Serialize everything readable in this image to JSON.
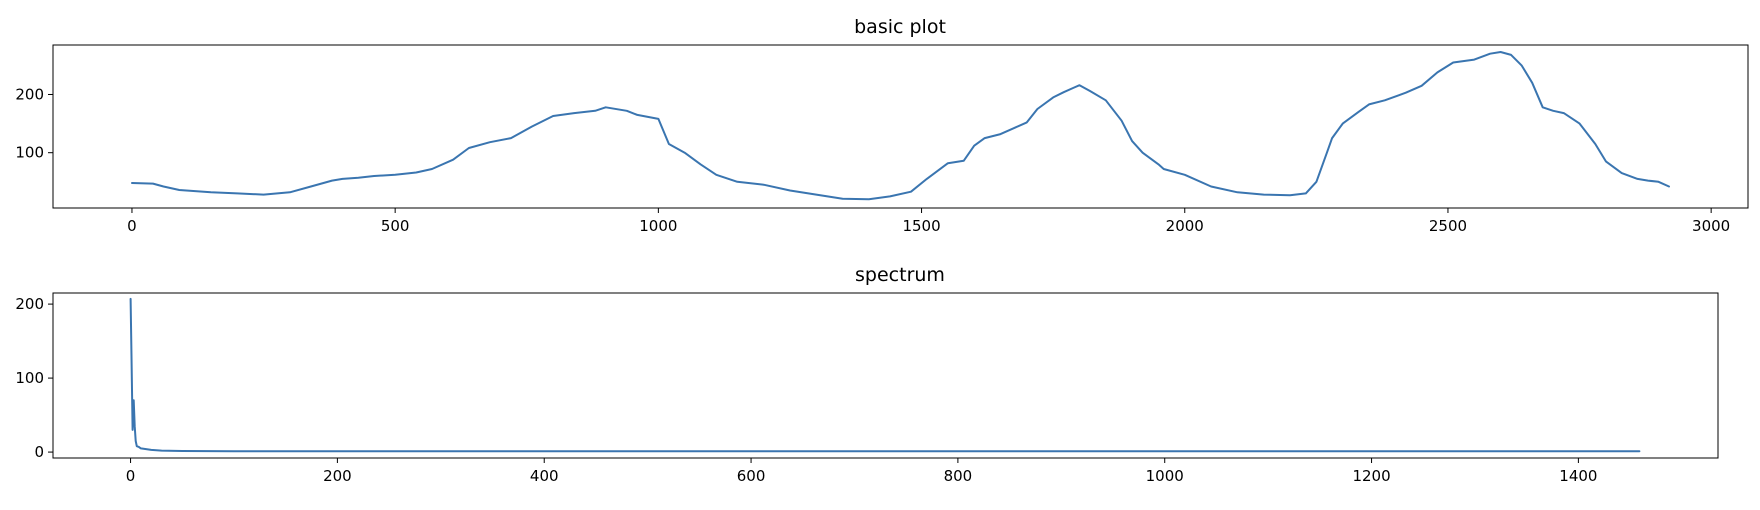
{
  "chart_data": [
    {
      "type": "line",
      "title": "basic plot",
      "xlabel": "",
      "ylabel": "",
      "xlim": [
        -150,
        3070
      ],
      "ylim": [
        5,
        285
      ],
      "xticks": [
        0,
        500,
        1000,
        1500,
        2000,
        2500,
        3000
      ],
      "yticks": [
        100,
        200
      ],
      "xtick_labels": [
        "0",
        "500",
        "1000",
        "1500",
        "2000",
        "2500",
        "3000"
      ],
      "ytick_labels": [
        "100",
        "200"
      ],
      "grid": false,
      "color": "#3a75b0",
      "series": [
        {
          "x": [
            0,
            40,
            60,
            90,
            150,
            200,
            250,
            300,
            340,
            380,
            400,
            430,
            460,
            500,
            540,
            570,
            610,
            640,
            680,
            720,
            760,
            800,
            840,
            880,
            900,
            940,
            960,
            1000,
            1020,
            1050,
            1080,
            1110,
            1150,
            1200,
            1250,
            1300,
            1350,
            1400,
            1440,
            1480,
            1510,
            1550,
            1580,
            1600,
            1620,
            1650,
            1700,
            1720,
            1750,
            1770,
            1790,
            1800,
            1820,
            1850,
            1880,
            1900,
            1920,
            1950,
            1960,
            2000,
            2050,
            2100,
            2150,
            2200,
            2230,
            2250,
            2270,
            2280,
            2300,
            2330,
            2350,
            2380,
            2420,
            2450,
            2480,
            2510,
            2550,
            2580,
            2600,
            2620,
            2640,
            2660,
            2680,
            2700,
            2720,
            2750,
            2780,
            2800,
            2830,
            2860,
            2880,
            2900,
            2920
          ],
          "y": [
            48,
            47,
            42,
            36,
            32,
            30,
            28,
            32,
            42,
            52,
            55,
            57,
            60,
            62,
            66,
            72,
            88,
            108,
            118,
            125,
            145,
            163,
            168,
            172,
            178,
            172,
            165,
            158,
            115,
            100,
            80,
            62,
            50,
            45,
            35,
            28,
            21,
            20,
            25,
            33,
            55,
            82,
            86,
            112,
            125,
            132,
            152,
            175,
            195,
            204,
            212,
            216,
            206,
            190,
            155,
            120,
            100,
            80,
            72,
            62,
            42,
            32,
            28,
            27,
            30,
            50,
            100,
            125,
            150,
            170,
            183,
            190,
            203,
            215,
            238,
            255,
            260,
            270,
            273,
            268,
            250,
            220,
            178,
            172,
            168,
            150,
            115,
            85,
            65,
            55,
            52,
            50,
            42
          ]
        }
      ]
    },
    {
      "type": "line",
      "title": "spectrum",
      "xlabel": "",
      "ylabel": "",
      "xlim": [
        -75,
        1535
      ],
      "ylim": [
        -8,
        215
      ],
      "xticks": [
        0,
        200,
        400,
        600,
        800,
        1000,
        1200,
        1400
      ],
      "yticks": [
        0,
        100,
        200
      ],
      "xtick_labels": [
        "0",
        "200",
        "400",
        "600",
        "800",
        "1000",
        "1200",
        "1400"
      ],
      "ytick_labels": [
        "0",
        "100",
        "200"
      ],
      "grid": false,
      "color": "#3a75b0",
      "series": [
        {
          "x": [
            0,
            1,
            2,
            3,
            4,
            5,
            6,
            8,
            10,
            15,
            20,
            30,
            50,
            100,
            200,
            400,
            600,
            800,
            1000,
            1200,
            1400,
            1459
          ],
          "y": [
            207,
            120,
            30,
            70,
            35,
            15,
            8,
            7,
            5,
            4,
            3,
            2,
            1.5,
            1,
            1,
            1,
            1,
            1,
            1,
            1,
            1,
            1
          ]
        }
      ]
    }
  ]
}
